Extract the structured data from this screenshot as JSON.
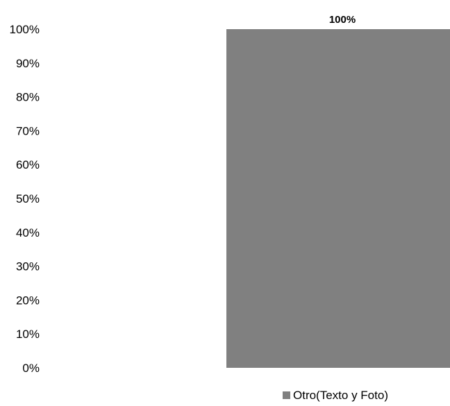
{
  "chart_data": {
    "type": "bar",
    "categories": [
      ""
    ],
    "series": [
      {
        "name": "Otro(Texto y Foto)",
        "values": [
          100
        ],
        "color": "#808080"
      }
    ],
    "data_labels": [
      "100%"
    ],
    "y_ticks": [
      "0%",
      "10%",
      "20%",
      "30%",
      "40%",
      "50%",
      "60%",
      "70%",
      "80%",
      "90%",
      "100%"
    ],
    "ylim": [
      0,
      100
    ],
    "title": "",
    "xlabel": "",
    "ylabel": "",
    "grid": false,
    "legend_position": "bottom"
  }
}
